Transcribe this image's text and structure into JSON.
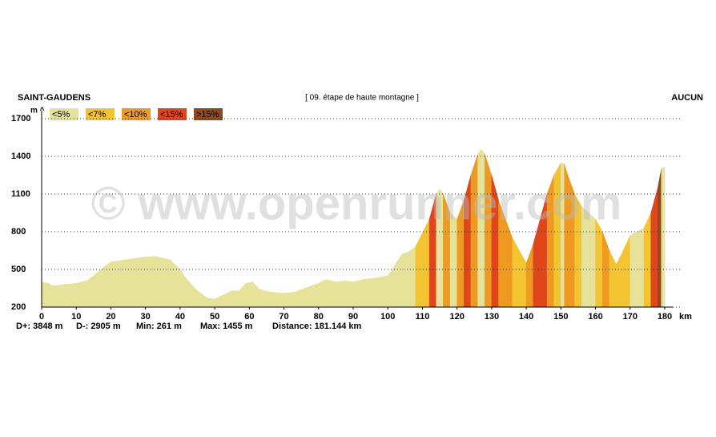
{
  "chart_data": {
    "type": "area",
    "title": "[ 09. étape de haute montagne ]",
    "start_label": "SAINT-GAUDENS",
    "end_label": "AUCUN",
    "y_label": "m ^",
    "x_label": "km",
    "watermark": "© www.openrunner.com",
    "stats": [
      "D+: 3848 m",
      "D-: 2905 m",
      "Min: 261 m",
      "Max: 1455 m",
      "Distance: 181.144 km"
    ],
    "legend": [
      {
        "label": "<5%",
        "color": "#e6e29a"
      },
      {
        "label": "<7%",
        "color": "#f2c431"
      },
      {
        "label": "<10%",
        "color": "#ee9a22"
      },
      {
        "label": "<15%",
        "color": "#e0461c"
      },
      {
        "label": ">15%",
        "color": "#8e4a1c"
      }
    ],
    "x": [
      0,
      2,
      3,
      5,
      10,
      13,
      15,
      18,
      20,
      25,
      30,
      33,
      35,
      37,
      40,
      42,
      45,
      48,
      50,
      52,
      55,
      57,
      59,
      61,
      63,
      66,
      70,
      73,
      76,
      80,
      82,
      85,
      88,
      90,
      93,
      96,
      100,
      102,
      104,
      106,
      108,
      110,
      112,
      114,
      115,
      116,
      118,
      120,
      122,
      124,
      126,
      127,
      128,
      130,
      132,
      134,
      136,
      138,
      140,
      142,
      144,
      146,
      148,
      150,
      151,
      152,
      154,
      156,
      158,
      160,
      162,
      164,
      166,
      168,
      170,
      172,
      174,
      176,
      178,
      179,
      180
    ],
    "series": [
      {
        "values": [
          400,
          390,
          370,
          375,
          390,
          410,
          450,
          520,
          560,
          580,
          600,
          605,
          590,
          580,
          500,
          420,
          330,
          270,
          265,
          290,
          330,
          330,
          390,
          400,
          340,
          320,
          310,
          320,
          350,
          390,
          420,
          400,
          410,
          400,
          420,
          430,
          450,
          530,
          620,
          640,
          680,
          790,
          900,
          1100,
          1140,
          1100,
          950,
          900,
          1050,
          1250,
          1420,
          1455,
          1420,
          1250,
          1050,
          900,
          750,
          650,
          550,
          700,
          900,
          1100,
          1250,
          1350,
          1340,
          1250,
          1100,
          1000,
          950,
          900,
          800,
          650,
          540,
          650,
          770,
          800,
          830,
          950,
          1150,
          1300,
          1320
        ]
      }
    ],
    "xlim": [
      0,
      180
    ],
    "ylim": [
      200,
      1700
    ],
    "xticks": [
      0,
      10,
      20,
      30,
      40,
      50,
      60,
      70,
      80,
      90,
      100,
      110,
      120,
      130,
      140,
      150,
      160,
      170,
      180
    ],
    "yticks": [
      200,
      500,
      800,
      1100,
      1400,
      1700
    ],
    "grid": true
  }
}
